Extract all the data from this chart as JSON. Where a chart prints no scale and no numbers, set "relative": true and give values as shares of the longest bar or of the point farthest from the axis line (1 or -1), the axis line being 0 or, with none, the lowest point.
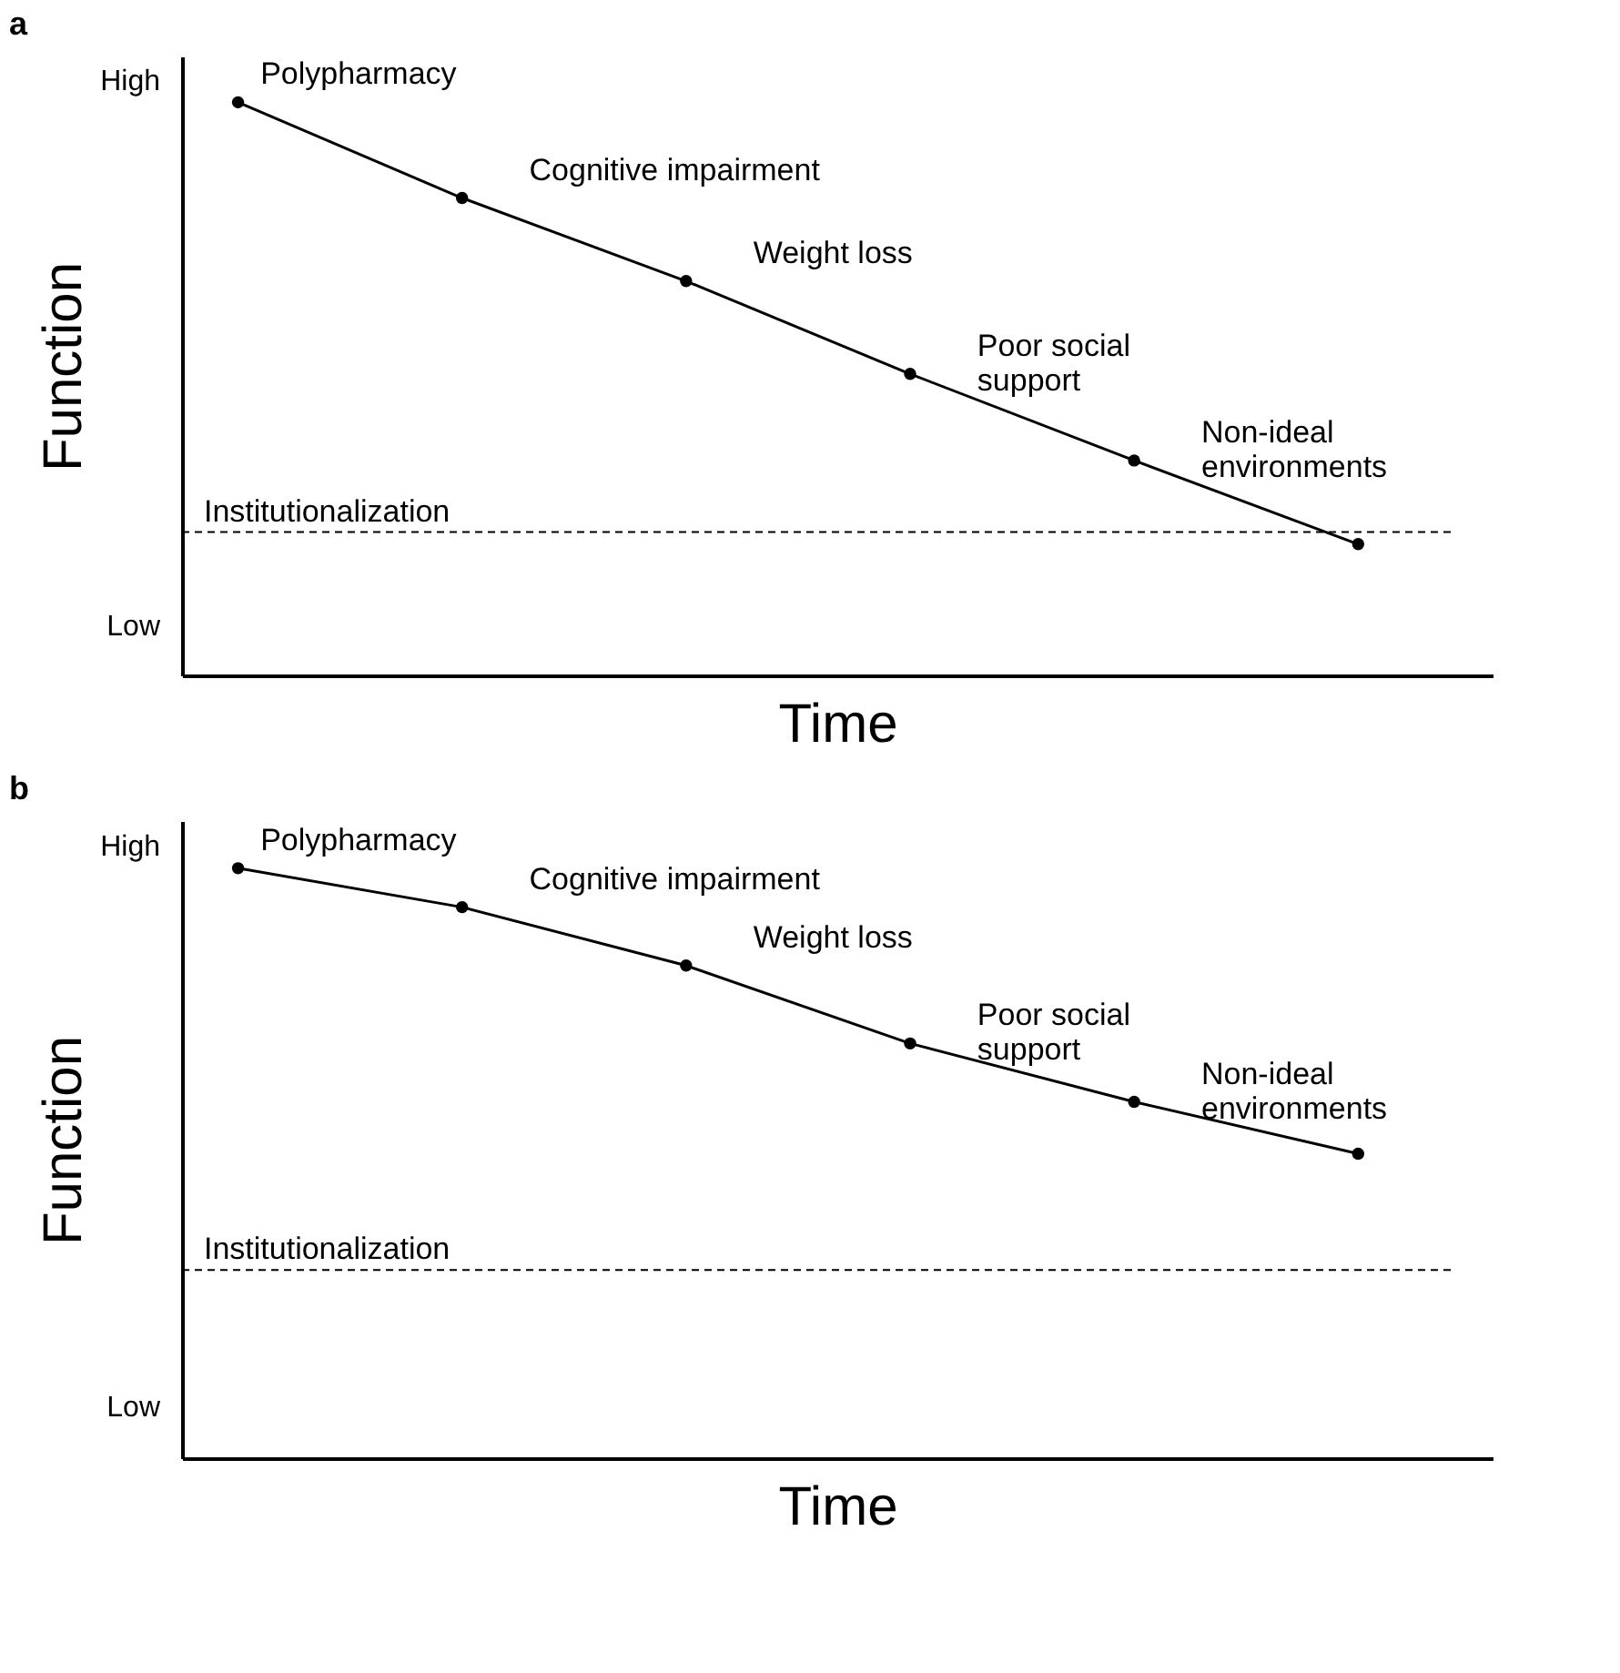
{
  "chart_data": [
    {
      "type": "line",
      "title": "a",
      "xlabel": "Time",
      "ylabel": "Function",
      "categories": [
        null,
        null,
        null,
        null,
        null,
        null
      ],
      "relative": true,
      "tick_labels": false,
      "series": [
        {
          "color": "#000000",
          "line_style": "solid",
          "marker": "circle",
          "values": [
            1,
            0.833,
            0.688,
            0.526,
            0.375,
            0.229
          ]
        }
      ],
      "ref_lines": [
        {
          "axis": "y",
          "value": 0.25,
          "label": "Institutionalization",
          "line_style": "dashed",
          "color": "#000000"
        }
      ],
      "annotations": [
        "Polypharmacy",
        "Cognitive impairment",
        "Weight loss",
        "Poor social\nsupport",
        "Non-ideal\nenvironments",
        "High",
        "Low"
      ]
    },
    {
      "type": "line",
      "title": "b",
      "xlabel": "Time",
      "ylabel": "Function",
      "categories": [
        null,
        null,
        null,
        null,
        null,
        null
      ],
      "relative": true,
      "tick_labels": false,
      "series": [
        {
          "color": "#000000",
          "line_style": "solid",
          "marker": "circle",
          "values": [
            1,
            0.934,
            0.835,
            0.703,
            0.604,
            0.516
          ]
        }
      ],
      "ref_lines": [
        {
          "axis": "y",
          "value": 0.319,
          "label": "Institutionalization",
          "line_style": "dashed",
          "color": "#000000"
        }
      ],
      "annotations": [
        "Polypharmacy",
        "Cognitive impairment",
        "Weight loss",
        "Poor social\nsupport",
        "Non-ideal\nenvironments",
        "High",
        "Low"
      ]
    }
  ]
}
